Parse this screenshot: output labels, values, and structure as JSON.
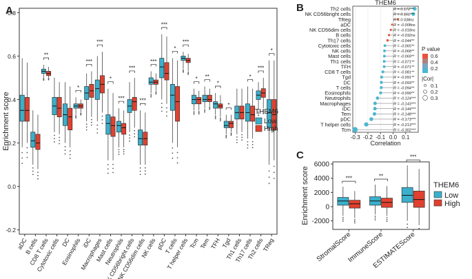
{
  "colors": {
    "low": "#3ab0cc",
    "high": "#e0412f",
    "axis": "#333333",
    "grid": "#ffffff"
  },
  "chart_data": [
    {
      "panel": "A",
      "type": "box",
      "ylabel": "Enrichment score",
      "ylim": [
        -0.22,
        0.82
      ],
      "yticks": [
        -0.2,
        0.0,
        0.2,
        0.4,
        0.6,
        0.8
      ],
      "yticklabels": [
        "-0.2",
        "0.0",
        "0.2",
        "0.4",
        "0.6",
        "0.8"
      ],
      "legend_title": "THEM6",
      "legend_entries": [
        "Low",
        "High"
      ],
      "categories": [
        "aDC",
        "B cells",
        "CD8 T cells",
        "Cytotoxic cells",
        "DC",
        "Eosinophils",
        "iDC",
        "Macrophages",
        "Mast cells",
        "Neutrophils",
        "NK CD56bright cells",
        "NK CD56dim cells",
        "NK cells",
        "pDC",
        "T cells",
        "T helper cells",
        "Tcm",
        "Tem",
        "TFH",
        "Tgd",
        "Th1 cells",
        "Th17 cells",
        "Th2 cells",
        "TReg"
      ],
      "significance": [
        "",
        "",
        "**",
        "",
        "",
        "*",
        "***",
        "***",
        "*",
        "***",
        "***",
        "***",
        "***",
        "***",
        "*",
        "***",
        "*",
        "**",
        "*",
        "*",
        "",
        "*",
        "***",
        "*"
      ],
      "series": [
        {
          "name": "Low",
          "boxes": [
            [
              0.18,
              0.3,
              0.35,
              0.42,
              0.59
            ],
            [
              0.1,
              0.18,
              0.21,
              0.25,
              0.35
            ],
            [
              0.5,
              0.52,
              0.53,
              0.54,
              0.56
            ],
            [
              0.25,
              0.33,
              0.37,
              0.41,
              0.5
            ],
            [
              0.2,
              0.28,
              0.33,
              0.38,
              0.48
            ],
            [
              0.33,
              0.36,
              0.37,
              0.38,
              0.41
            ],
            [
              0.3,
              0.4,
              0.43,
              0.46,
              0.52
            ],
            [
              0.3,
              0.4,
              0.45,
              0.49,
              0.6
            ],
            [
              0.12,
              0.24,
              0.29,
              0.33,
              0.45
            ],
            [
              0.18,
              0.25,
              0.28,
              0.3,
              0.36
            ],
            [
              0.25,
              0.34,
              0.37,
              0.4,
              0.48
            ],
            [
              0.1,
              0.19,
              0.22,
              0.26,
              0.35
            ],
            [
              0.43,
              0.47,
              0.48,
              0.5,
              0.53
            ],
            [
              0.4,
              0.5,
              0.55,
              0.59,
              0.7
            ],
            [
              0.2,
              0.35,
              0.42,
              0.47,
              0.59
            ],
            [
              0.54,
              0.58,
              0.59,
              0.6,
              0.62
            ],
            [
              0.35,
              0.38,
              0.4,
              0.42,
              0.45
            ],
            [
              0.36,
              0.39,
              0.4,
              0.42,
              0.46
            ],
            [
              0.33,
              0.36,
              0.38,
              0.39,
              0.43
            ],
            [
              0.24,
              0.27,
              0.28,
              0.3,
              0.33
            ],
            [
              0.24,
              0.31,
              0.34,
              0.37,
              0.45
            ],
            [
              0.22,
              0.3,
              0.34,
              0.38,
              0.46
            ],
            [
              0.35,
              0.4,
              0.42,
              0.44,
              0.48
            ],
            [
              0.1,
              0.27,
              0.34,
              0.4,
              0.58
            ]
          ]
        },
        {
          "name": "High",
          "boxes": [
            [
              0.2,
              0.3,
              0.35,
              0.41,
              0.57
            ],
            [
              0.08,
              0.17,
              0.2,
              0.24,
              0.33
            ],
            [
              0.5,
              0.51,
              0.52,
              0.53,
              0.55
            ],
            [
              0.24,
              0.32,
              0.36,
              0.41,
              0.48
            ],
            [
              0.18,
              0.26,
              0.32,
              0.36,
              0.46
            ],
            [
              0.34,
              0.36,
              0.37,
              0.38,
              0.4
            ],
            [
              0.32,
              0.41,
              0.44,
              0.47,
              0.53
            ],
            [
              0.34,
              0.43,
              0.47,
              0.51,
              0.62
            ],
            [
              0.12,
              0.23,
              0.28,
              0.32,
              0.43
            ],
            [
              0.18,
              0.24,
              0.27,
              0.29,
              0.35
            ],
            [
              0.27,
              0.35,
              0.39,
              0.41,
              0.5
            ],
            [
              0.1,
              0.19,
              0.22,
              0.25,
              0.34
            ],
            [
              0.44,
              0.47,
              0.48,
              0.49,
              0.52
            ],
            [
              0.38,
              0.49,
              0.52,
              0.57,
              0.69
            ],
            [
              0.18,
              0.3,
              0.39,
              0.46,
              0.58
            ],
            [
              0.53,
              0.57,
              0.58,
              0.59,
              0.61
            ],
            [
              0.35,
              0.38,
              0.4,
              0.41,
              0.44
            ],
            [
              0.37,
              0.39,
              0.4,
              0.42,
              0.45
            ],
            [
              0.32,
              0.36,
              0.37,
              0.38,
              0.42
            ],
            [
              0.25,
              0.27,
              0.29,
              0.3,
              0.33
            ],
            [
              0.25,
              0.31,
              0.34,
              0.37,
              0.45
            ],
            [
              0.22,
              0.3,
              0.33,
              0.37,
              0.45
            ],
            [
              0.36,
              0.41,
              0.43,
              0.45,
              0.5
            ],
            [
              0.12,
              0.26,
              0.33,
              0.4,
              0.58
            ]
          ]
        }
      ]
    },
    {
      "panel": "B",
      "type": "lollipop",
      "title": "THEM6",
      "xlabel": "Correlation",
      "xlim": [
        -0.32,
        0.2
      ],
      "xticks": [
        -0.3,
        -0.2,
        -0.1,
        0.0,
        0.1
      ],
      "xticklabels": [
        "-0.3",
        "-0.2",
        "-0.1",
        "0.0",
        "0.1"
      ],
      "legend_pvalue_title": "P value",
      "legend_pvalue_labels": [
        "0.6",
        "0.4",
        "0.2"
      ],
      "legend_cor_title": "|Cor|",
      "legend_cor_labels": [
        "0.1",
        "0.2",
        "0.3"
      ],
      "items": [
        {
          "label": "Th2 cells",
          "r": 0.172,
          "text": "R = 0.172***"
        },
        {
          "label": "NK CD56bright cells",
          "r": 0.161,
          "text": "R = 0.161***"
        },
        {
          "label": "TReg",
          "r": 0.038,
          "text": "R = 0.038ns"
        },
        {
          "label": "aDC",
          "r": -0.008,
          "text": "R = -0.008ns"
        },
        {
          "label": "NK CD56dim cells",
          "r": -0.018,
          "text": "R = -0.018ns"
        },
        {
          "label": "B cells",
          "r": -0.032,
          "text": "R = -0.032ns"
        },
        {
          "label": "Th17 cells",
          "r": -0.044,
          "text": "R = -0.044**"
        },
        {
          "label": "Cytotoxic cells",
          "r": -0.065,
          "text": "R = -0.065**"
        },
        {
          "label": "NK cells",
          "r": -0.068,
          "text": "R = -0.068**"
        },
        {
          "label": "Mast cells",
          "r": -0.069,
          "text": "R = -0.069**"
        },
        {
          "label": "Th1 cells",
          "r": -0.071,
          "text": "R = -0.071**"
        },
        {
          "label": "TFH",
          "r": -0.071,
          "text": "R = -0.071**"
        },
        {
          "label": "CD8 T cells",
          "r": -0.081,
          "text": "R = -0.081**"
        },
        {
          "label": "Tgd",
          "r": -0.091,
          "text": "R = -0.091**"
        },
        {
          "label": "DC",
          "r": -0.093,
          "text": "R = -0.093**"
        },
        {
          "label": "T cells",
          "r": -0.094,
          "text": "R = -0.094**"
        },
        {
          "label": "Eosinophils",
          "r": -0.099,
          "text": "R = -0.099**"
        },
        {
          "label": "Neutrophils",
          "r": -0.124,
          "text": "R = -0.124***"
        },
        {
          "label": "Macrophages",
          "r": -0.143,
          "text": "R = -0.143***"
        },
        {
          "label": "iDC",
          "r": -0.144,
          "text": "R = -0.144***"
        },
        {
          "label": "Tem",
          "r": -0.148,
          "text": "R = -0.148***"
        },
        {
          "label": "pDC",
          "r": -0.173,
          "text": "R = -0.173***"
        },
        {
          "label": "T helper cells",
          "r": -0.213,
          "text": "R = -0.213***"
        },
        {
          "label": "Tcm",
          "r": -0.302,
          "text": "R = -0.302***"
        }
      ]
    },
    {
      "panel": "C",
      "type": "box",
      "ylabel": "Enrichment score",
      "ylim": [
        -3200,
        6300
      ],
      "yticks": [
        -2000,
        0,
        2000,
        4000,
        6000
      ],
      "yticklabels": [
        "-2000",
        "0",
        "2000",
        "4000",
        "6000"
      ],
      "legend_title": "THEM6",
      "legend_entries": [
        "Low",
        "High"
      ],
      "categories": [
        "StromalScore",
        "ImmuneScore",
        "ESTIMATEScore"
      ],
      "significance": [
        "***",
        "**",
        "***"
      ],
      "series": [
        {
          "name": "Low",
          "boxes": [
            [
              -1300,
              200,
              800,
              1300,
              2800
            ],
            [
              -1100,
              200,
              800,
              1400,
              3100
            ],
            [
              -2000,
              600,
              1600,
              2700,
              5800
            ]
          ]
        },
        {
          "name": "High",
          "boxes": [
            [
              -1600,
              -200,
              400,
              900,
              2200
            ],
            [
              -1300,
              -100,
              600,
              1200,
              2900
            ],
            [
              -2600,
              -100,
              1000,
              2200,
              5300
            ]
          ]
        }
      ]
    }
  ]
}
